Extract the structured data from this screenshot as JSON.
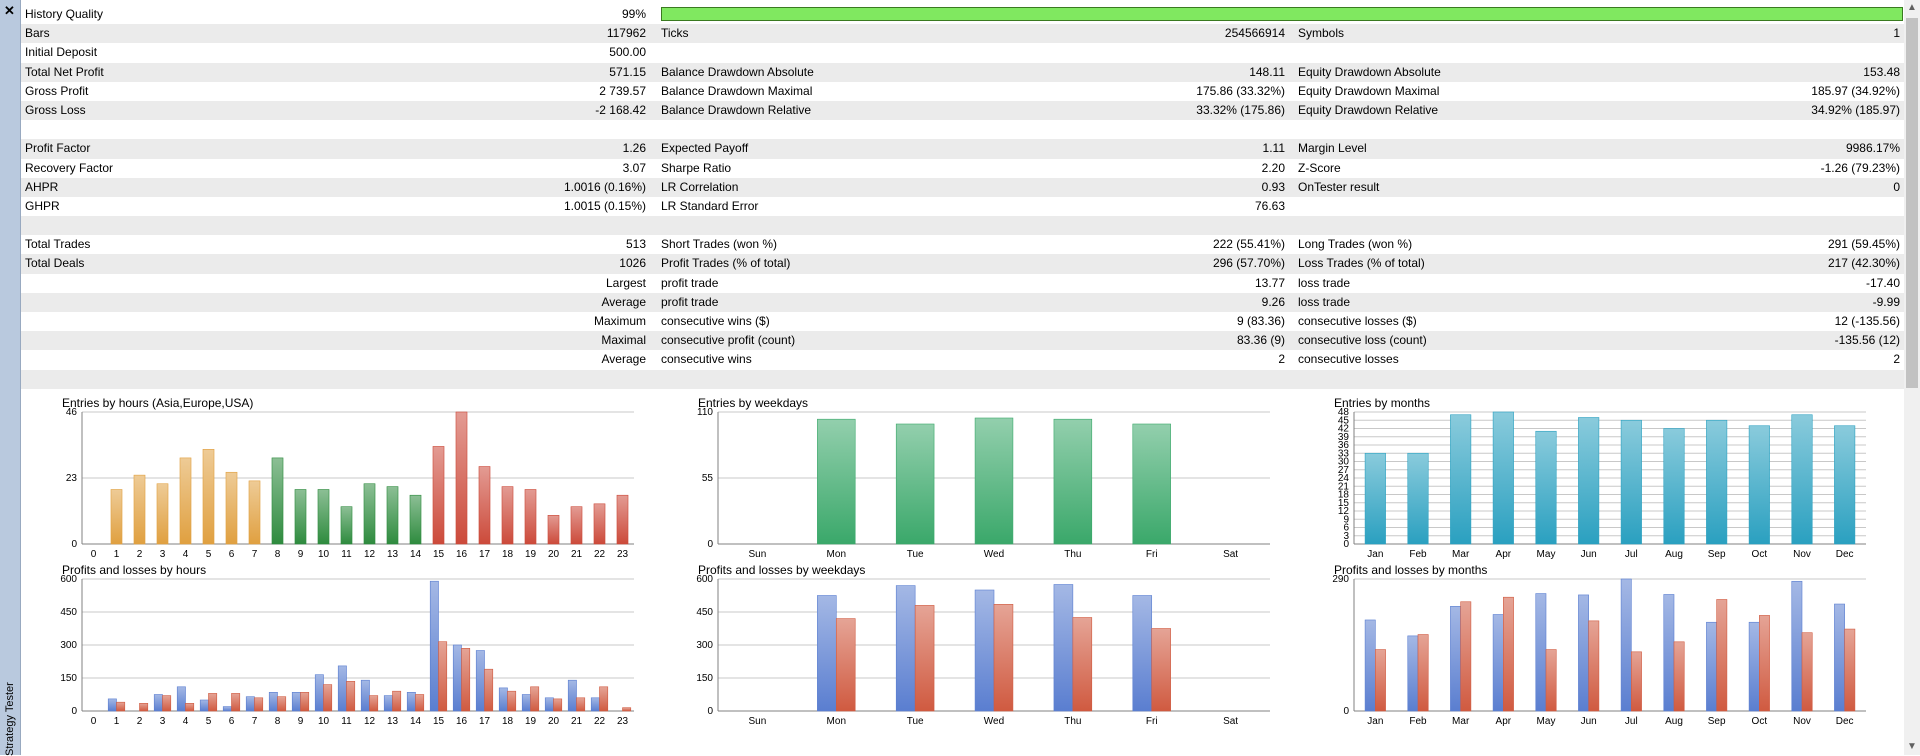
{
  "window": {
    "side_label": "Strategy Tester"
  },
  "colors": {
    "quality_bar": "#80e860",
    "asia": "#e0a040",
    "europe": "#2e8b3e",
    "usa": "#cc4a3a",
    "weekday": "#3aa86a",
    "month": "#2aa0c0",
    "profit": "#5a7ed0",
    "loss": "#d05a40"
  },
  "report": {
    "rows": [
      {
        "l1": "History Quality",
        "v1": "99%",
        "l2": "",
        "v2": "",
        "l3": "",
        "v3": "",
        "bar": true,
        "shaded": false
      },
      {
        "l1": "Bars",
        "v1": "117962",
        "l2": "Ticks",
        "v2": "254566914",
        "l3": "Symbols",
        "v3": "1",
        "shaded": true
      },
      {
        "l1": "Initial Deposit",
        "v1": "500.00",
        "l2": "",
        "v2": "",
        "l3": "",
        "v3": "",
        "shaded": false
      },
      {
        "l1": "Total Net Profit",
        "v1": "571.15",
        "l2": "Balance Drawdown Absolute",
        "v2": "148.11",
        "l3": "Equity Drawdown Absolute",
        "v3": "153.48",
        "shaded": true
      },
      {
        "l1": "Gross Profit",
        "v1": "2 739.57",
        "l2": "Balance Drawdown Maximal",
        "v2": "175.86 (33.32%)",
        "l3": "Equity Drawdown Maximal",
        "v3": "185.97 (34.92%)",
        "shaded": false
      },
      {
        "l1": "Gross Loss",
        "v1": "-2 168.42",
        "l2": "Balance Drawdown Relative",
        "v2": "33.32% (175.86)",
        "l3": "Equity Drawdown Relative",
        "v3": "34.92% (185.97)",
        "shaded": true
      },
      {
        "l1": "",
        "v1": "",
        "l2": "",
        "v2": "",
        "l3": "",
        "v3": "",
        "shaded": false
      },
      {
        "l1": "Profit Factor",
        "v1": "1.26",
        "l2": "Expected Payoff",
        "v2": "1.11",
        "l3": "Margin Level",
        "v3": "9986.17%",
        "shaded": true
      },
      {
        "l1": "Recovery Factor",
        "v1": "3.07",
        "l2": "Sharpe Ratio",
        "v2": "2.20",
        "l3": "Z-Score",
        "v3": "-1.26 (79.23%)",
        "shaded": false
      },
      {
        "l1": "AHPR",
        "v1": "1.0016 (0.16%)",
        "l2": "LR Correlation",
        "v2": "0.93",
        "l3": "OnTester result",
        "v3": "0",
        "shaded": true
      },
      {
        "l1": "GHPR",
        "v1": "1.0015 (0.15%)",
        "l2": "LR Standard Error",
        "v2": "76.63",
        "l3": "",
        "v3": "",
        "shaded": false
      },
      {
        "l1": "",
        "v1": "",
        "l2": "",
        "v2": "",
        "l3": "",
        "v3": "",
        "shaded": true
      },
      {
        "l1": "Total Trades",
        "v1": "513",
        "l2": "Short Trades (won %)",
        "v2": "222 (55.41%)",
        "l3": "Long Trades (won %)",
        "v3": "291 (59.45%)",
        "shaded": false
      },
      {
        "l1": "Total Deals",
        "v1": "1026",
        "l2": "Profit Trades (% of total)",
        "v2": "296 (57.70%)",
        "l3": "Loss Trades (% of total)",
        "v3": "217 (42.30%)",
        "shaded": true
      },
      {
        "l1": "",
        "v1": "Largest",
        "l2": "profit trade",
        "v2": "13.77",
        "l3": "loss trade",
        "v3": "-17.40",
        "shaded": false
      },
      {
        "l1": "",
        "v1": "Average",
        "l2": "profit trade",
        "v2": "9.26",
        "l3": "loss trade",
        "v3": "-9.99",
        "shaded": true
      },
      {
        "l1": "",
        "v1": "Maximum",
        "l2": "consecutive wins ($)",
        "v2": "9 (83.36)",
        "l3": "consecutive losses ($)",
        "v3": "12 (-135.56)",
        "shaded": false
      },
      {
        "l1": "",
        "v1": "Maximal",
        "l2": "consecutive profit (count)",
        "v2": "83.36 (9)",
        "l3": "consecutive loss (count)",
        "v3": "-135.56 (12)",
        "shaded": true
      },
      {
        "l1": "",
        "v1": "Average",
        "l2": "consecutive wins",
        "v2": "2",
        "l3": "consecutive losses",
        "v3": "2",
        "shaded": false
      },
      {
        "l1": "",
        "v1": "",
        "l2": "",
        "v2": "",
        "l3": "",
        "v3": "",
        "shaded": true
      }
    ]
  },
  "chart_data": [
    {
      "id": "entries-hours",
      "type": "bar",
      "title": "Entries by hours (Asia,Europe,USA)",
      "categories": [
        "0",
        "1",
        "2",
        "3",
        "4",
        "5",
        "6",
        "7",
        "8",
        "9",
        "10",
        "11",
        "12",
        "13",
        "14",
        "15",
        "16",
        "17",
        "18",
        "19",
        "20",
        "21",
        "22",
        "23"
      ],
      "values": [
        0,
        19,
        24,
        21,
        30,
        33,
        25,
        22,
        30,
        19,
        19,
        13,
        21,
        20,
        17,
        34,
        46,
        27,
        20,
        19,
        10,
        13,
        14,
        17
      ],
      "ylim": [
        0,
        46
      ],
      "yticks": [
        0,
        23,
        46
      ]
    },
    {
      "id": "entries-weekdays",
      "type": "bar",
      "title": "Entries by weekdays",
      "categories": [
        "Sun",
        "Mon",
        "Tue",
        "Wed",
        "Thu",
        "Fri",
        "Sat"
      ],
      "values": [
        0,
        104,
        100,
        105,
        104,
        100,
        0
      ],
      "ylim": [
        0,
        110
      ],
      "yticks": [
        0,
        55,
        110
      ]
    },
    {
      "id": "entries-months",
      "type": "bar",
      "title": "Entries by months",
      "categories": [
        "Jan",
        "Feb",
        "Mar",
        "Apr",
        "May",
        "Jun",
        "Jul",
        "Aug",
        "Sep",
        "Oct",
        "Nov",
        "Dec"
      ],
      "values": [
        33,
        33,
        47,
        48,
        41,
        46,
        45,
        42,
        45,
        43,
        47,
        43
      ],
      "ylim": [
        0,
        48
      ],
      "yticks": [
        0,
        3,
        6,
        9,
        12,
        15,
        18,
        21,
        24,
        27,
        30,
        33,
        36,
        39,
        42,
        45,
        48
      ]
    },
    {
      "id": "pl-hours",
      "type": "bar",
      "title": "Profits and losses by hours",
      "categories": [
        "0",
        "1",
        "2",
        "3",
        "4",
        "5",
        "6",
        "7",
        "8",
        "9",
        "10",
        "11",
        "12",
        "13",
        "14",
        "15",
        "16",
        "17",
        "18",
        "19",
        "20",
        "21",
        "22",
        "23"
      ],
      "series": [
        {
          "name": "Profit",
          "values": [
            0,
            55,
            0,
            75,
            110,
            50,
            20,
            65,
            85,
            85,
            165,
            205,
            140,
            70,
            85,
            590,
            300,
            275,
            105,
            75,
            60,
            140,
            60,
            0
          ]
        },
        {
          "name": "Loss",
          "values": [
            0,
            40,
            35,
            70,
            35,
            80,
            80,
            60,
            65,
            85,
            120,
            135,
            70,
            90,
            75,
            315,
            285,
            190,
            90,
            110,
            55,
            60,
            110,
            15
          ]
        }
      ],
      "ylim": [
        0,
        600
      ],
      "yticks": [
        0,
        150,
        300,
        450,
        600
      ]
    },
    {
      "id": "pl-weekdays",
      "type": "bar",
      "title": "Profits and losses by weekdays",
      "categories": [
        "Sun",
        "Mon",
        "Tue",
        "Wed",
        "Thu",
        "Fri",
        "Sat"
      ],
      "series": [
        {
          "name": "Profit",
          "values": [
            0,
            525,
            570,
            550,
            575,
            525,
            0
          ]
        },
        {
          "name": "Loss",
          "values": [
            0,
            420,
            480,
            485,
            425,
            375,
            0
          ]
        }
      ],
      "ylim": [
        0,
        600
      ],
      "yticks": [
        0,
        150,
        300,
        450,
        600
      ]
    },
    {
      "id": "pl-months",
      "type": "bar",
      "title": "Profits and losses by months",
      "categories": [
        "Jan",
        "Feb",
        "Mar",
        "Apr",
        "May",
        "Jun",
        "Jul",
        "Aug",
        "Sep",
        "Oct",
        "Nov",
        "Dec"
      ],
      "series": [
        {
          "name": "Profit",
          "values": [
            200,
            165,
            230,
            212,
            258,
            255,
            290,
            256,
            195,
            195,
            285,
            235
          ]
        },
        {
          "name": "Loss",
          "values": [
            135,
            168,
            240,
            250,
            135,
            198,
            130,
            152,
            245,
            210,
            172,
            180
          ]
        }
      ],
      "ylim": [
        0,
        290
      ],
      "yticks": [
        0,
        290
      ]
    }
  ]
}
